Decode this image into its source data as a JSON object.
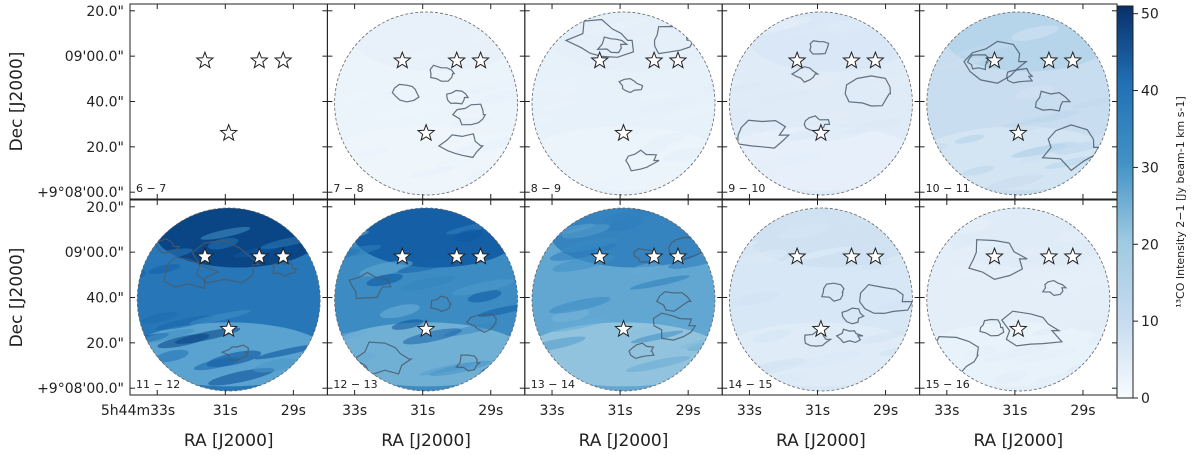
{
  "chart_data": {
    "type": "heatmap",
    "title": "",
    "xlabel": "RA [J2000]",
    "ylabel": "Dec [J2000]",
    "x_ticks": [
      "5h44m33s",
      "31s",
      "29s"
    ],
    "x_ticks_short": [
      "33s",
      "31s",
      "29s"
    ],
    "y_ticks": [
      "20.0\"",
      "09'00.0\"",
      "40.0\"",
      "20.0\"",
      "+9°08'00.0\""
    ],
    "colorbar": {
      "label": "¹³CO Intensity 2−1 [Jy beam-1 km s-1]",
      "min": 0,
      "max": 51,
      "ticks": [
        0,
        10,
        20,
        30,
        40,
        50
      ],
      "colormap": "Blues"
    },
    "panels": [
      {
        "label": "6 − 7",
        "mean_intensity": 0,
        "has_data": false
      },
      {
        "label": "7 − 8",
        "mean_intensity": 3,
        "has_data": true
      },
      {
        "label": "8 − 9",
        "mean_intensity": 4,
        "has_data": true
      },
      {
        "label": "9 − 10",
        "mean_intensity": 6,
        "has_data": true
      },
      {
        "label": "10 − 11",
        "mean_intensity": 12,
        "has_data": true
      },
      {
        "label": "11 − 12",
        "mean_intensity": 37,
        "has_data": true
      },
      {
        "label": "12 − 13",
        "mean_intensity": 33,
        "has_data": true
      },
      {
        "label": "13 − 14",
        "mean_intensity": 27,
        "has_data": true
      },
      {
        "label": "14 − 15",
        "mean_intensity": 8,
        "has_data": true
      },
      {
        "label": "15 − 16",
        "mean_intensity": 5,
        "has_data": true
      }
    ],
    "stars": [
      {
        "ra_s": 31.6,
        "dec_arcsec": 58
      },
      {
        "ra_s": 30.0,
        "dec_arcsec": 58
      },
      {
        "ra_s": 29.3,
        "dec_arcsec": 58
      },
      {
        "ra_s": 30.9,
        "dec_arcsec": 26
      }
    ]
  }
}
